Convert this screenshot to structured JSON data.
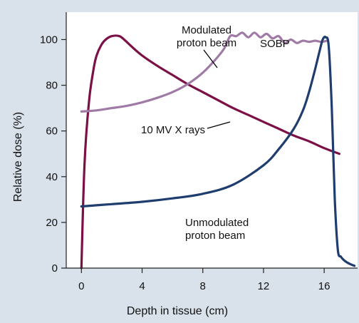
{
  "chart_data": {
    "type": "line",
    "xlabel": "Depth in tissue (cm)",
    "ylabel": "Relative dose (%)",
    "xlim": [
      -1,
      18.2
    ],
    "ylim": [
      0,
      112
    ],
    "xticks": [
      0,
      4,
      8,
      12,
      16
    ],
    "yticks": [
      0,
      20,
      40,
      60,
      80,
      100
    ],
    "grid": false,
    "legend": "none",
    "series": [
      {
        "name": "10 MV X rays",
        "color": "#7b1046",
        "x": [
          0.0,
          0.2,
          0.5,
          0.8,
          1.0,
          1.3,
          1.6,
          2.0,
          2.5,
          2.9,
          3.3,
          4.0,
          5.0,
          6.0,
          7.0,
          8.0,
          9.0,
          10.0,
          11.0,
          12.0,
          13.0,
          14.0,
          15.0,
          16.0,
          17.0
        ],
        "y": [
          0,
          45,
          73,
          87,
          93,
          97.5,
          100,
          101.5,
          101.5,
          99.5,
          97,
          93,
          88.5,
          84.5,
          80.5,
          77,
          73.5,
          70,
          67,
          64,
          61,
          58,
          55.5,
          52.5,
          50
        ]
      },
      {
        "name": "Modulated proton beam",
        "color": "#a07aa6",
        "x": [
          0.0,
          1.0,
          2.0,
          3.0,
          4.0,
          5.0,
          6.0,
          7.0,
          8.0,
          8.8,
          9.4,
          9.8,
          10.2,
          10.6,
          11.0,
          11.4,
          11.8,
          12.2,
          12.6,
          13.0,
          13.4,
          13.8,
          14.2,
          14.6,
          15.0,
          15.4,
          15.8,
          16.2
        ],
        "y": [
          68.5,
          69,
          70,
          71,
          72.5,
          74.5,
          77,
          80.5,
          85.5,
          91,
          96,
          101.5,
          101.5,
          103,
          101,
          103,
          101,
          102.5,
          100.5,
          101.5,
          98.5,
          100,
          98.5,
          99.5,
          99,
          99.5,
          99,
          99.5
        ]
      },
      {
        "name": "Unmodulated proton beam",
        "color": "#1f3d6e",
        "x": [
          0.0,
          1.0,
          2.0,
          4.0,
          6.0,
          8.0,
          10.0,
          12.0,
          13.0,
          14.0,
          14.6,
          15.0,
          15.4,
          15.7,
          15.9,
          16.1,
          16.3,
          16.5,
          16.7,
          16.9,
          17.1,
          17.3,
          17.5,
          17.8,
          18.0
        ],
        "y": [
          27,
          27.5,
          28,
          29,
          30.5,
          32.5,
          36.5,
          45,
          52,
          61,
          69,
          77,
          87,
          95,
          100,
          101,
          97,
          70,
          30,
          8,
          5,
          3.5,
          2.5,
          1.5,
          1
        ]
      }
    ],
    "annotations": [
      {
        "text": "Modulated proton beam",
        "lines": [
          "Modulated",
          "proton beam"
        ],
        "points_to": [
          9.3,
          96
        ]
      },
      {
        "text": "SOBP"
      },
      {
        "text": "10 MV X rays",
        "points_to": [
          10.0,
          70
        ]
      },
      {
        "text": "Unmodulated proton beam",
        "lines": [
          "Unmodulated",
          "proton beam"
        ]
      }
    ]
  }
}
